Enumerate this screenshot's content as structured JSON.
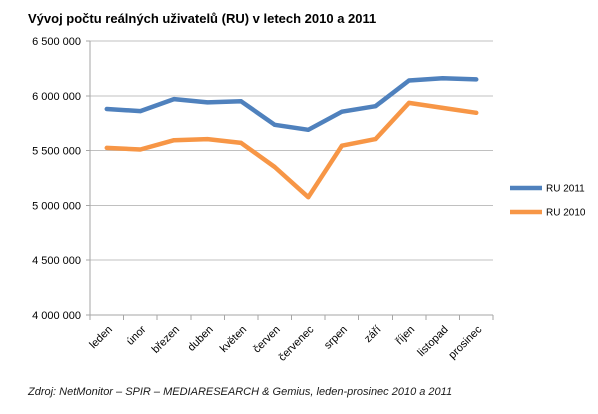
{
  "chart_data": {
    "type": "line",
    "title": "Vývoj počtu reálných uživatelů (RU) v letech 2010 a 2011",
    "categories": [
      "leden",
      "únor",
      "březen",
      "duben",
      "květen",
      "červen",
      "červenec",
      "srpen",
      "září",
      "říjen",
      "listopad",
      "prosinec"
    ],
    "series": [
      {
        "name": "RU 2011",
        "color": "#4F81BD",
        "values": [
          5880000,
          5860000,
          5970000,
          5940000,
          5950000,
          5735000,
          5690000,
          5855000,
          5905000,
          6140000,
          6160000,
          6150000
        ]
      },
      {
        "name": "RU 2010",
        "color": "#F79646",
        "values": [
          5525000,
          5510000,
          5595000,
          5605000,
          5570000,
          5350000,
          5075000,
          5545000,
          5605000,
          5935000,
          5890000,
          5845000
        ]
      }
    ],
    "ylim": [
      4000000,
      6500000
    ],
    "yticks": [
      4000000,
      4500000,
      5000000,
      5500000,
      6000000,
      6500000
    ],
    "ytick_labels": [
      "4 000 000",
      "4 500 000",
      "5 000 000",
      "5 500 000",
      "6 000 000",
      "6 500 000"
    ],
    "grid": true,
    "legend": "right"
  },
  "source": "Zdroj: NetMonitor – SPIR – MEDIARESEARCH & Gemius, leden-prosinec 2010 a 2011"
}
